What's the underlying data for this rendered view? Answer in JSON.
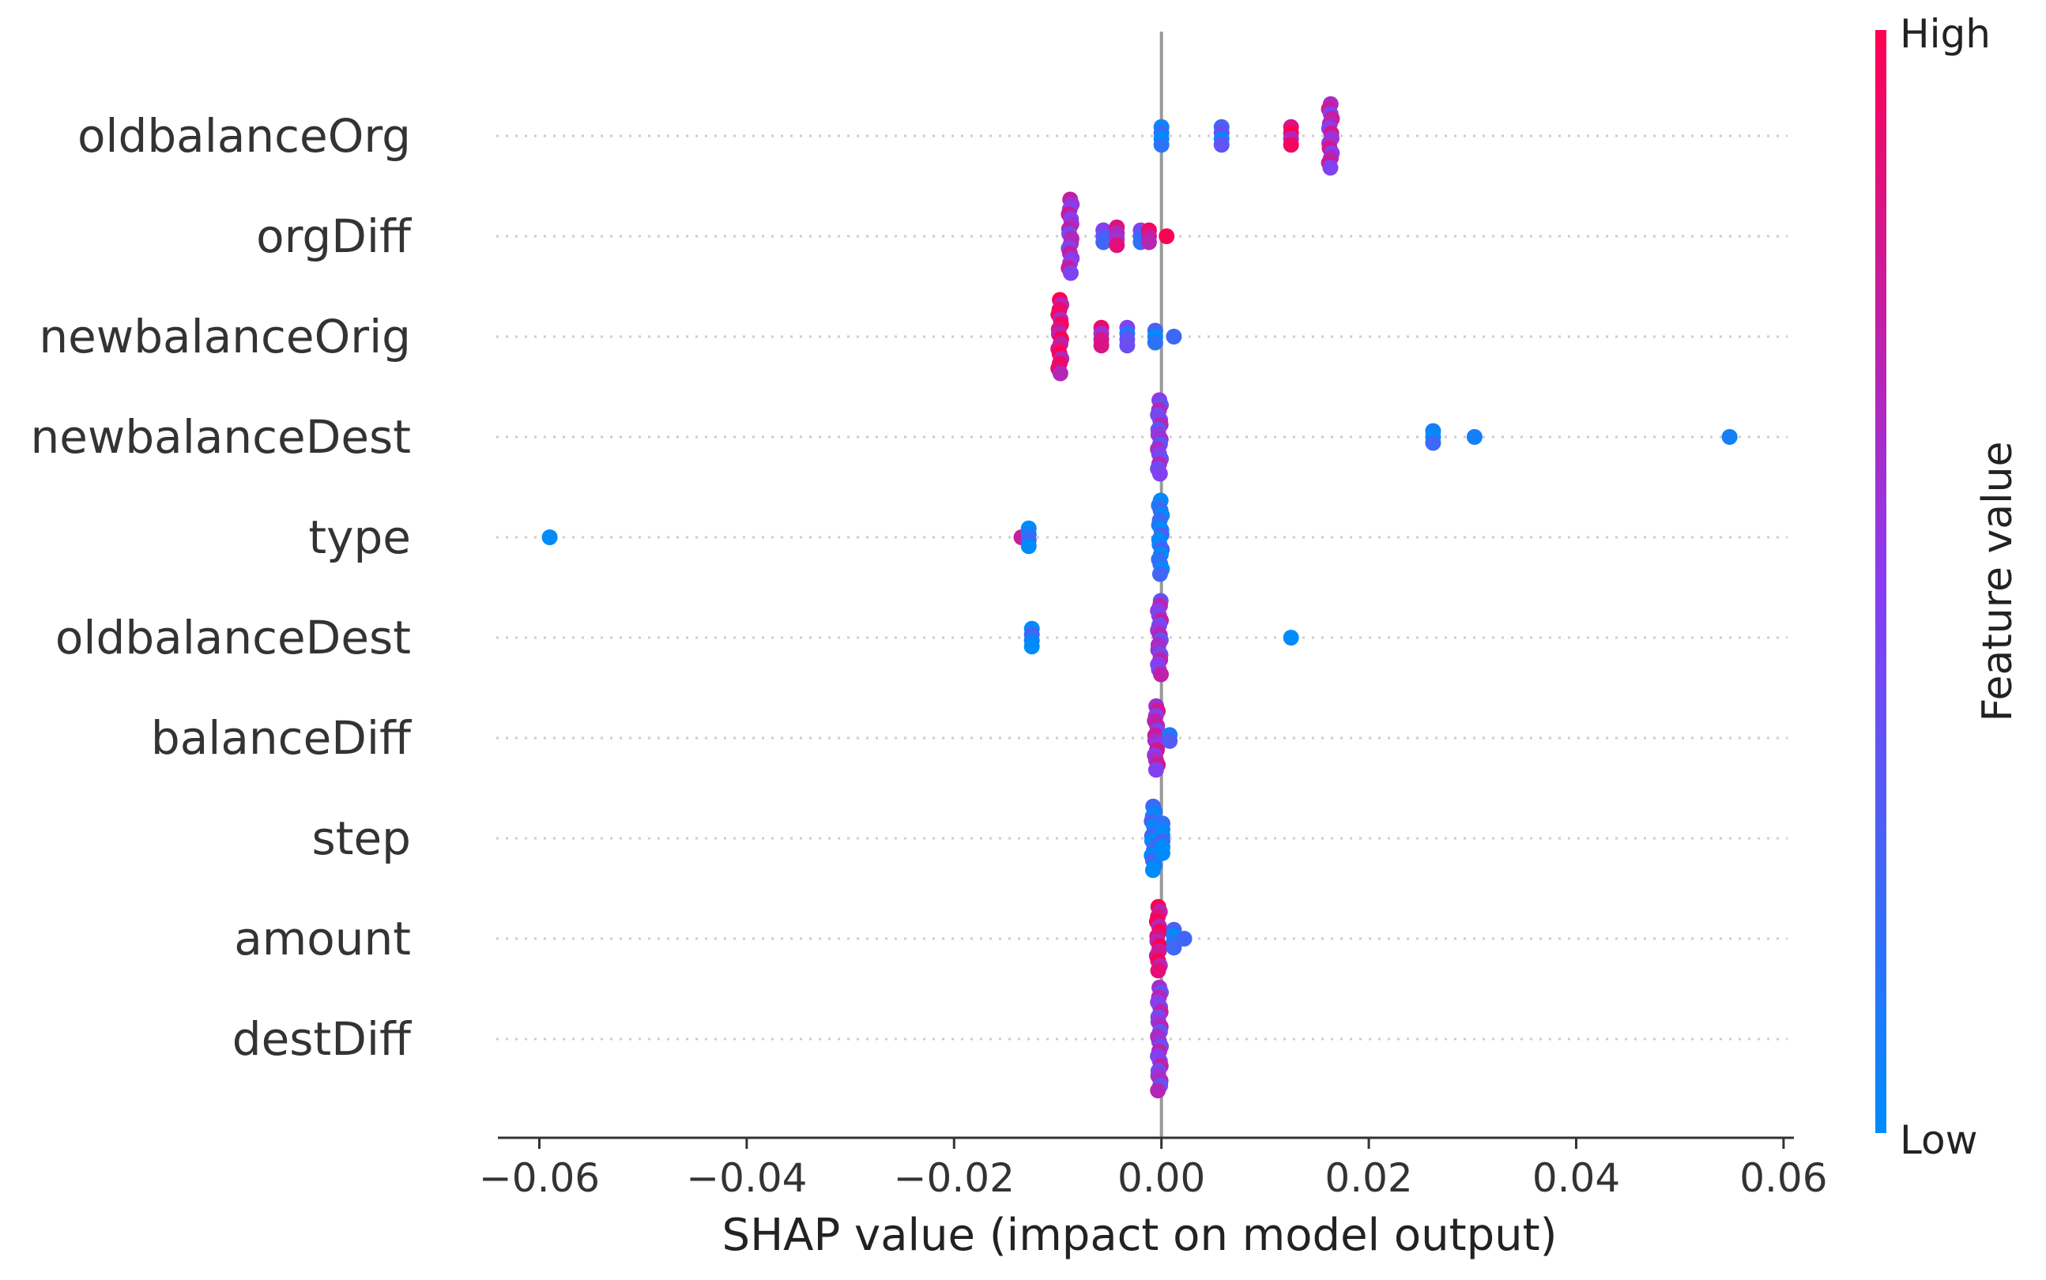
{
  "chart_data": {
    "type": "scatter",
    "subtype": "shap-beeswarm",
    "title": "",
    "xlabel": "SHAP value (impact on model output)",
    "ylabel": "",
    "xlim": [
      -0.064,
      0.061
    ],
    "xticks": [
      -0.06,
      -0.04,
      -0.02,
      0.0,
      0.02,
      0.04,
      0.06
    ],
    "xtick_labels": [
      "−0.06",
      "−0.04",
      "−0.02",
      "0.00",
      "0.02",
      "0.04",
      "0.06"
    ],
    "grid": "dotted-horizontal",
    "colorbar": {
      "title": "Feature value",
      "high_label": "High",
      "low_label": "Low",
      "low_color": "#008bfb",
      "high_color": "#ff0052"
    },
    "features": [
      {
        "name": "oldbalanceOrg",
        "clusters": [
          {
            "x": 0.0,
            "color": 0.05,
            "count": 4
          },
          {
            "x": 0.0058,
            "color": 0.25,
            "count": 4
          },
          {
            "x": 0.0125,
            "color": 0.85,
            "count": 4
          },
          {
            "x": 0.0163,
            "color": 0.65,
            "count": 14
          }
        ]
      },
      {
        "name": "orgDiff",
        "clusters": [
          {
            "x": -0.0088,
            "color": 0.6,
            "count": 16
          },
          {
            "x": -0.0056,
            "color": 0.35,
            "count": 3
          },
          {
            "x": -0.0043,
            "color": 0.7,
            "count": 4
          },
          {
            "x": -0.002,
            "color": 0.3,
            "count": 3
          },
          {
            "x": -0.0012,
            "color": 0.8,
            "count": 3
          },
          {
            "x": 0.0005,
            "color": 0.95,
            "count": 1
          }
        ]
      },
      {
        "name": "newbalanceOrig",
        "clusters": [
          {
            "x": -0.0098,
            "color": 0.85,
            "count": 16
          },
          {
            "x": -0.0058,
            "color": 0.75,
            "count": 4
          },
          {
            "x": -0.0033,
            "color": 0.3,
            "count": 4
          },
          {
            "x": -0.0006,
            "color": 0.1,
            "count": 3
          },
          {
            "x": 0.0012,
            "color": 0.05,
            "count": 1
          }
        ]
      },
      {
        "name": "newbalanceDest",
        "clusters": [
          {
            "x": -0.0002,
            "color": 0.5,
            "count": 16
          },
          {
            "x": 0.0262,
            "color": 0.05,
            "count": 3
          },
          {
            "x": 0.0302,
            "color": 0.05,
            "count": 1
          },
          {
            "x": 0.0548,
            "color": 0.05,
            "count": 1
          }
        ]
      },
      {
        "name": "type",
        "clusters": [
          {
            "x": -0.059,
            "color": 0.05,
            "count": 1
          },
          {
            "x": -0.0135,
            "color": 0.9,
            "count": 1
          },
          {
            "x": -0.0128,
            "color": 0.1,
            "count": 4
          },
          {
            "x": -0.0001,
            "color": 0.1,
            "count": 16
          }
        ]
      },
      {
        "name": "oldbalanceDest",
        "clusters": [
          {
            "x": -0.0125,
            "color": 0.1,
            "count": 4
          },
          {
            "x": -0.0002,
            "color": 0.55,
            "count": 16
          },
          {
            "x": 0.0125,
            "color": 0.05,
            "count": 1
          }
        ]
      },
      {
        "name": "balanceDiff",
        "clusters": [
          {
            "x": -0.0005,
            "color": 0.65,
            "count": 14
          },
          {
            "x": 0.0008,
            "color": 0.15,
            "count": 2
          }
        ]
      },
      {
        "name": "step",
        "clusters": [
          {
            "x": -0.0008,
            "color": 0.1,
            "count": 14
          },
          {
            "x": 0.0001,
            "color": 0.05,
            "count": 6
          }
        ]
      },
      {
        "name": "amount",
        "clusters": [
          {
            "x": -0.0003,
            "color": 0.85,
            "count": 14
          },
          {
            "x": 0.0012,
            "color": 0.1,
            "count": 4
          },
          {
            "x": 0.0022,
            "color": 0.05,
            "count": 1
          }
        ]
      },
      {
        "name": "destDiff",
        "clusters": [
          {
            "x": -0.0002,
            "color": 0.55,
            "count": 22
          }
        ]
      }
    ]
  }
}
